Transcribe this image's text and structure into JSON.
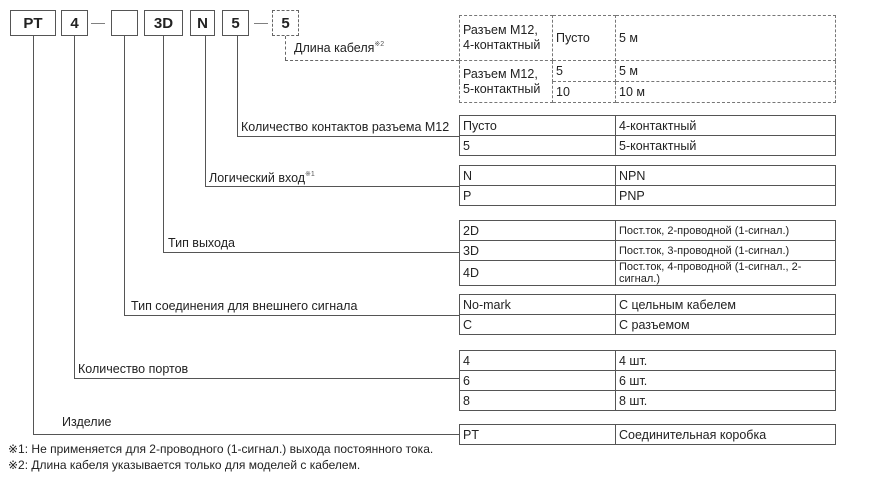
{
  "code_boxes": [
    {
      "label": "PT"
    },
    {
      "label": "4"
    },
    {
      "label": ""
    },
    {
      "label": "3D"
    },
    {
      "label": "N"
    },
    {
      "label": "5"
    },
    {
      "label": "5"
    }
  ],
  "separator": "—",
  "sections": {
    "cable_length": {
      "label": "Длина кабеля",
      "note_mark": "※2",
      "rows": [
        [
          "Разъем M12,\n4-контактный",
          "Пусто",
          "5 м"
        ],
        [
          "Разъем M12,\n5-контактный",
          "5",
          "5 м"
        ],
        [
          "",
          "10",
          "10 м"
        ]
      ]
    },
    "m12_contacts": {
      "label": "Количество контактов разъема M12",
      "rows": [
        [
          "Пусто",
          "4-контактный"
        ],
        [
          "5",
          "5-контактный"
        ]
      ]
    },
    "logic_input": {
      "label": "Логический вход",
      "note_mark": "※1",
      "rows": [
        [
          "N",
          "NPN"
        ],
        [
          "P",
          "PNP"
        ]
      ]
    },
    "output_type": {
      "label": "Тип выхода",
      "rows": [
        [
          "2D",
          "Пост.ток, 2-проводной (1-сигнал.)"
        ],
        [
          "3D",
          "Пост.ток, 3-проводной (1-сигнал.)"
        ],
        [
          "4D",
          "Пост.ток, 4-проводной (1-сигнал., 2-сигнал.)"
        ]
      ]
    },
    "connection_type": {
      "label": "Тип соединения для внешнего сигнала",
      "rows": [
        [
          "No-mark",
          "С цельным кабелем"
        ],
        [
          "C",
          "С разъемом"
        ]
      ]
    },
    "ports": {
      "label": "Количество портов",
      "rows": [
        [
          "4",
          "4 шт."
        ],
        [
          "6",
          "6 шт."
        ],
        [
          "8",
          "8 шт."
        ]
      ]
    },
    "product": {
      "label": "Изделие",
      "rows": [
        [
          "PT",
          "Соединительная коробка"
        ]
      ]
    }
  },
  "footnotes": [
    "※1: Не применяется для 2-проводного (1-сигнал.) выхода постоянного тока.",
    "※2: Длина кабеля указывается только для моделей с кабелем."
  ]
}
